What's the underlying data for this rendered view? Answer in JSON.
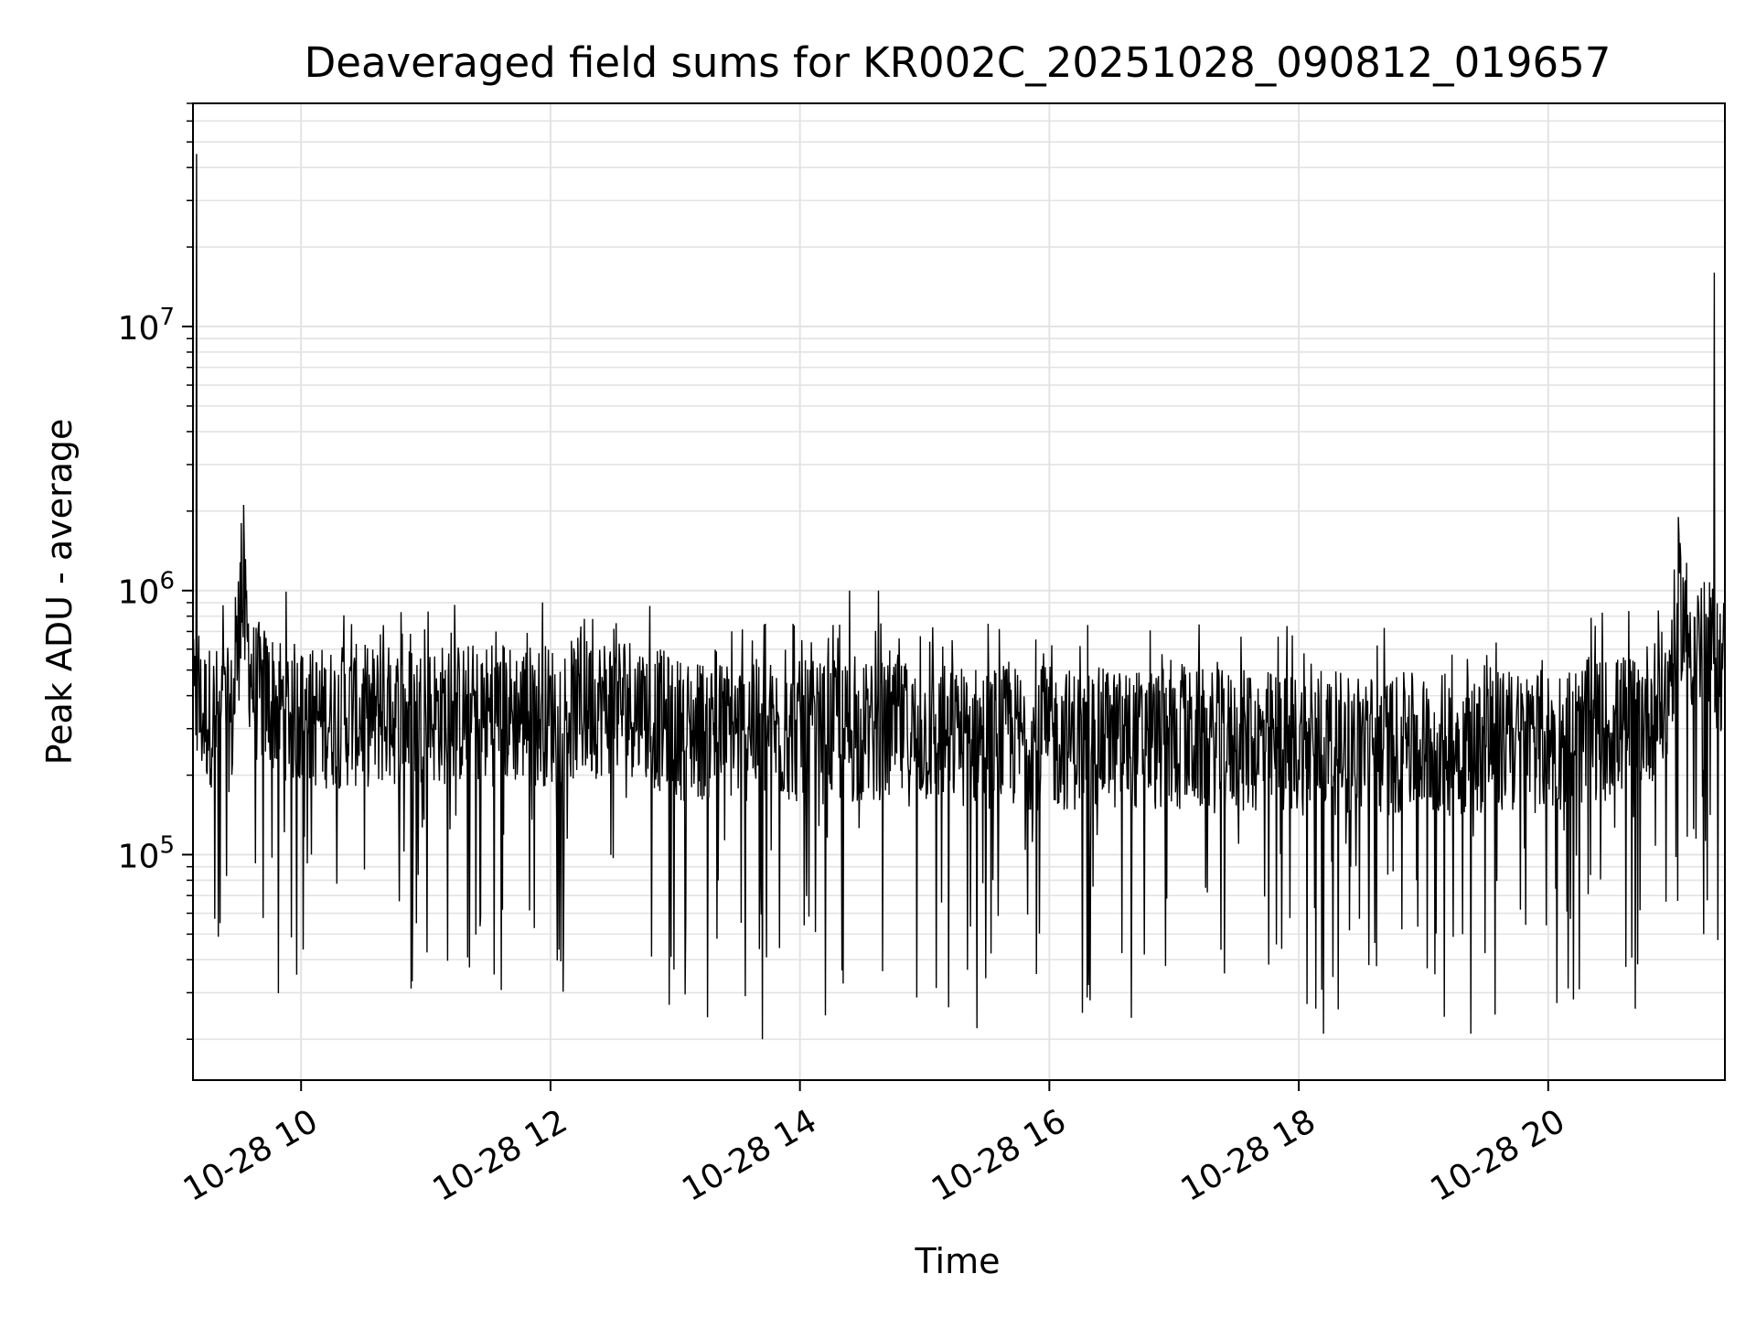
{
  "chart_data": {
    "type": "line",
    "title": "Deaveraged field sums for KR002C_20251028_090812_019657",
    "xlabel": "Time",
    "ylabel": "Peak ADU - average",
    "yscale": "log",
    "ylim": [
      14000,
      70000000
    ],
    "xlim": [
      9.133,
      21.417
    ],
    "grid": true,
    "line_color": "#000000",
    "x_ticks": [
      {
        "value": 10,
        "label": "10-28 10"
      },
      {
        "value": 12,
        "label": "10-28 12"
      },
      {
        "value": 14,
        "label": "10-28 14"
      },
      {
        "value": 16,
        "label": "10-28 16"
      },
      {
        "value": 18,
        "label": "10-28 18"
      },
      {
        "value": 20,
        "label": "10-28 20"
      }
    ],
    "y_ticks": [
      {
        "value": 100000,
        "base": "10",
        "exp": "5"
      },
      {
        "value": 1000000,
        "base": "10",
        "exp": "6"
      },
      {
        "value": 10000000,
        "base": "10",
        "exp": "7"
      }
    ],
    "series": [
      {
        "name": "Peak ADU - average",
        "baseline": [
          [
            9.133,
            350000
          ],
          [
            9.45,
            320000
          ],
          [
            9.52,
            950000
          ],
          [
            9.62,
            420000
          ],
          [
            10.0,
            330000
          ],
          [
            11.0,
            340000
          ],
          [
            12.0,
            340000
          ],
          [
            12.6,
            380000
          ],
          [
            13.0,
            300000
          ],
          [
            14.0,
            290000
          ],
          [
            15.0,
            285000
          ],
          [
            16.0,
            275000
          ],
          [
            17.0,
            270000
          ],
          [
            18.0,
            265000
          ],
          [
            19.0,
            260000
          ],
          [
            20.0,
            270000
          ],
          [
            20.6,
            310000
          ],
          [
            20.95,
            380000
          ],
          [
            21.05,
            900000
          ],
          [
            21.15,
            650000
          ],
          [
            21.417,
            520000
          ]
        ],
        "spikes": [
          [
            9.16,
            45000000
          ],
          [
            9.52,
            1800000
          ],
          [
            14.4,
            1000000
          ],
          [
            14.63,
            1000000
          ],
          [
            21.33,
            16000000
          ],
          [
            21.05,
            1650000
          ]
        ],
        "dips": [
          [
            13.7,
            20000
          ],
          [
            15.42,
            22000
          ],
          [
            19.38,
            21000
          ],
          [
            18.2,
            21000
          ],
          [
            9.35,
            55000
          ],
          [
            12.95,
            27000
          ]
        ]
      }
    ]
  }
}
